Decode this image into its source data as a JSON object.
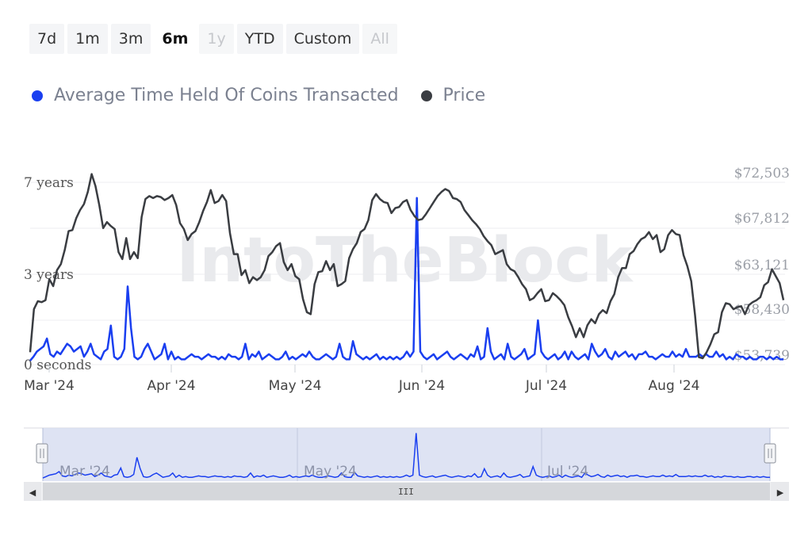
{
  "range_selector": [
    {
      "label": "7d",
      "state": "normal"
    },
    {
      "label": "1m",
      "state": "normal"
    },
    {
      "label": "3m",
      "state": "normal"
    },
    {
      "label": "6m",
      "state": "active"
    },
    {
      "label": "1y",
      "state": "disabled"
    },
    {
      "label": "YTD",
      "state": "normal"
    },
    {
      "label": "Custom",
      "state": "normal"
    },
    {
      "label": "All",
      "state": "disabled"
    }
  ],
  "legend": [
    {
      "label": "Average Time Held Of Coins Transacted",
      "color": "#1a3ff0"
    },
    {
      "label": "Price",
      "color": "#3a3d42"
    }
  ],
  "watermark": "IntoTheBlock",
  "navigator": {
    "labels": [
      "Mar '24",
      "May '24",
      "Jul '24"
    ],
    "handle_icon": "grip-icon",
    "left_arrow": "◀",
    "right_arrow": "▶",
    "scroll_grip": "III"
  },
  "chart_data": {
    "type": "line",
    "title": "",
    "y_left": {
      "ticks": [
        "7 years",
        "3 years",
        "0 seconds"
      ],
      "range_years": [
        0,
        8
      ]
    },
    "y_right": {
      "ticks": [
        "$72,503",
        "$67,812",
        "$63,121",
        "$58,430",
        "$53,739"
      ],
      "range": [
        53739,
        72503
      ]
    },
    "x_ticks": [
      "Mar '24",
      "Apr '24",
      "May '24",
      "Jun '24",
      "Jul '24",
      "Aug '24"
    ],
    "series": [
      {
        "name": "Average Time Held Of Coins Transacted",
        "axis": "left",
        "color": "#1a3ff0",
        "values": [
          0.1,
          0.3,
          0.5,
          0.6,
          0.7,
          1.0,
          0.4,
          0.3,
          0.5,
          0.4,
          0.6,
          0.8,
          0.7,
          0.5,
          0.6,
          0.7,
          0.3,
          0.5,
          0.8,
          0.4,
          0.3,
          0.2,
          0.5,
          0.6,
          1.5,
          0.3,
          0.2,
          0.3,
          0.6,
          3.0,
          1.4,
          0.3,
          0.2,
          0.3,
          0.6,
          0.8,
          0.5,
          0.2,
          0.3,
          0.4,
          0.8,
          0.2,
          0.5,
          0.2,
          0.3,
          0.2,
          0.2,
          0.3,
          0.4,
          0.3,
          0.3,
          0.2,
          0.3,
          0.4,
          0.3,
          0.3,
          0.2,
          0.3,
          0.2,
          0.4,
          0.3,
          0.3,
          0.2,
          0.3,
          0.8,
          0.2,
          0.4,
          0.3,
          0.5,
          0.2,
          0.3,
          0.4,
          0.3,
          0.2,
          0.2,
          0.3,
          0.5,
          0.2,
          0.3,
          0.2,
          0.3,
          0.4,
          0.3,
          0.5,
          0.3,
          0.2,
          0.2,
          0.3,
          0.4,
          0.3,
          0.2,
          0.3,
          0.8,
          0.3,
          0.2,
          0.2,
          0.9,
          0.4,
          0.3,
          0.2,
          0.3,
          0.2,
          0.3,
          0.4,
          0.2,
          0.3,
          0.2,
          0.3,
          0.2,
          0.3,
          0.2,
          0.3,
          0.5,
          0.3,
          0.5,
          6.4,
          0.5,
          0.3,
          0.2,
          0.3,
          0.4,
          0.2,
          0.3,
          0.4,
          0.5,
          0.3,
          0.2,
          0.3,
          0.4,
          0.3,
          0.2,
          0.4,
          0.3,
          0.7,
          0.2,
          0.3,
          1.4,
          0.5,
          0.2,
          0.3,
          0.4,
          0.2,
          0.8,
          0.3,
          0.2,
          0.3,
          0.4,
          0.6,
          0.2,
          0.3,
          0.4,
          1.7,
          0.5,
          0.3,
          0.2,
          0.3,
          0.4,
          0.2,
          0.3,
          0.5,
          0.2,
          0.5,
          0.3,
          0.2,
          0.3,
          0.4,
          0.2,
          0.8,
          0.5,
          0.3,
          0.4,
          0.6,
          0.3,
          0.2,
          0.5,
          0.3,
          0.4,
          0.5,
          0.3,
          0.4,
          0.2,
          0.4,
          0.4,
          0.5,
          0.3,
          0.3,
          0.2,
          0.3,
          0.4,
          0.3,
          0.3,
          0.5,
          0.3,
          0.4,
          0.3,
          0.6,
          0.3,
          0.3,
          0.3,
          0.4,
          0.3,
          0.4,
          0.3,
          0.3,
          0.5,
          0.3,
          0.4,
          0.2,
          0.3,
          0.2,
          0.4,
          0.3,
          0.3,
          0.2,
          0.3,
          0.2,
          0.2,
          0.3,
          0.3,
          0.2,
          0.3,
          0.2,
          0.3,
          0.2,
          0.2
        ]
      },
      {
        "name": "Price",
        "axis": "right",
        "color": "#3a3d42",
        "values": [
          54500,
          58800,
          59600,
          59500,
          59700,
          61800,
          61100,
          62700,
          63300,
          64700,
          66600,
          66700,
          67900,
          68700,
          69300,
          70500,
          72300,
          71100,
          69200,
          66900,
          67500,
          67100,
          66800,
          64500,
          63800,
          65900,
          63800,
          64500,
          63900,
          68000,
          69800,
          70100,
          69900,
          70100,
          70000,
          69700,
          69900,
          70200,
          69200,
          67400,
          66800,
          65700,
          66300,
          66600,
          67500,
          68600,
          69500,
          70700,
          69400,
          69600,
          70200,
          69600,
          66400,
          64300,
          64300,
          62200,
          62700,
          61400,
          62000,
          61700,
          62000,
          62700,
          64100,
          64500,
          65100,
          65400,
          63500,
          62700,
          63300,
          62100,
          61800,
          59800,
          58500,
          58300,
          61300,
          62500,
          62600,
          63600,
          62700,
          63300,
          61100,
          61300,
          61600,
          63900,
          64800,
          65400,
          66500,
          66800,
          67700,
          69700,
          70300,
          69800,
          69500,
          69400,
          68400,
          68900,
          69000,
          69500,
          69700,
          68700,
          68100,
          67700,
          67800,
          68300,
          68900,
          69500,
          70100,
          70500,
          70800,
          70600,
          69900,
          69800,
          69500,
          68700,
          68200,
          67700,
          67300,
          66800,
          66100,
          65600,
          65200,
          64300,
          64500,
          64700,
          63300,
          62800,
          62600,
          62000,
          61300,
          60800,
          59700,
          59900,
          60400,
          60800,
          59600,
          59700,
          60400,
          60100,
          59700,
          59200,
          58000,
          57100,
          56000,
          56900,
          56000,
          57200,
          57800,
          57400,
          58300,
          58700,
          58400,
          59600,
          60300,
          62000,
          62900,
          62900,
          64300,
          64600,
          65300,
          65800,
          66000,
          66500,
          65800,
          66200,
          64500,
          64800,
          66200,
          66700,
          66300,
          66200,
          64200,
          63100,
          61600,
          58200,
          54000,
          53900,
          54500,
          55300,
          56300,
          56500,
          58500,
          59400,
          59300,
          58800,
          59000,
          59100,
          58300,
          59200,
          59500,
          59700,
          60000,
          61200,
          61500,
          62800,
          62100,
          61400,
          59700
        ]
      }
    ]
  }
}
